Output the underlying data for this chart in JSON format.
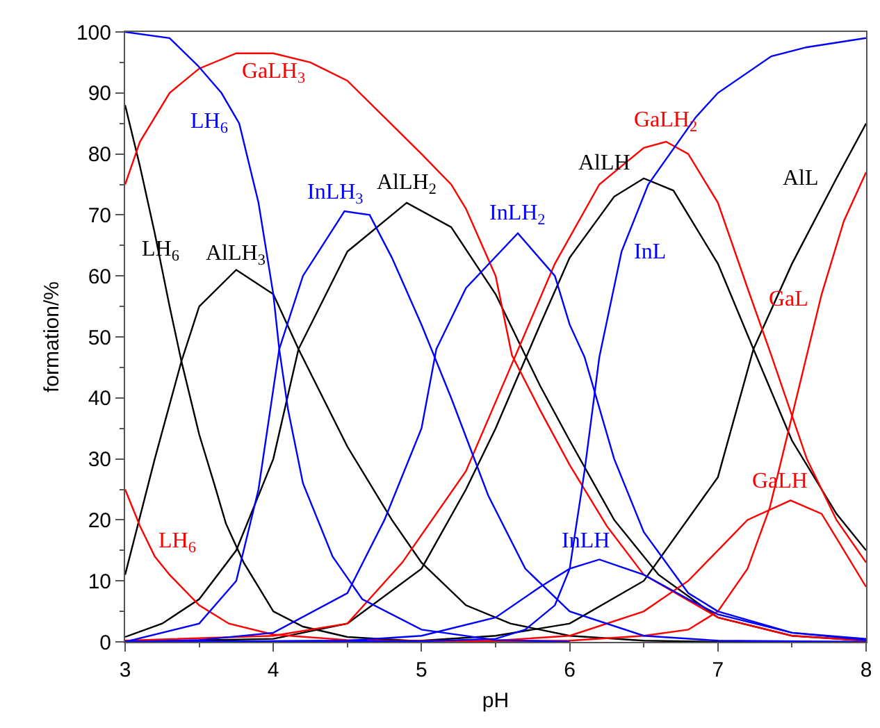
{
  "chart_data": {
    "type": "line",
    "xlabel": "pH",
    "ylabel": "formation/%",
    "xlim": [
      3,
      8
    ],
    "ylim": [
      0,
      100
    ],
    "xticks": [
      3,
      4,
      5,
      6,
      7,
      8
    ],
    "yticks": [
      0,
      10,
      20,
      30,
      40,
      50,
      60,
      70,
      80,
      90,
      100
    ],
    "marker": "none",
    "line_style": "solid",
    "series": [
      {
        "color": "#000000",
        "x": [
          3.0,
          3.1,
          3.2,
          3.3,
          3.38,
          3.5,
          3.6,
          3.68,
          3.8,
          3.9,
          4.0,
          4.2,
          4.5,
          5.0,
          5.5
        ],
        "values": [
          88,
          78,
          67,
          55,
          46,
          34,
          26,
          19.4,
          13,
          9,
          5,
          2.5,
          0.8,
          0.1,
          0
        ]
      },
      {
        "color": "#000000",
        "x": [
          3.0,
          3.2,
          3.38,
          3.5,
          3.75,
          4.0,
          4.17,
          4.5,
          4.8,
          5.0,
          5.3,
          5.6,
          6.0,
          6.5,
          7.0,
          8.0
        ],
        "values": [
          11,
          30,
          46,
          55,
          61,
          57,
          48,
          32,
          20,
          13,
          6,
          3,
          1,
          0.2,
          0,
          0
        ]
      },
      {
        "color": "#000000",
        "x": [
          3.0,
          3.25,
          3.5,
          3.75,
          4.0,
          4.17,
          4.5,
          4.9,
          5.2,
          5.5,
          5.8,
          6.0,
          6.3,
          6.6,
          7.0,
          7.5,
          8.0
        ],
        "values": [
          0.8,
          3,
          7,
          15,
          30,
          48,
          64,
          72,
          68,
          57,
          42,
          33,
          20,
          11,
          4,
          1,
          0.2
        ]
      },
      {
        "color": "#000000",
        "x": [
          3.0,
          4.0,
          4.5,
          5.0,
          5.3,
          5.5,
          5.8,
          6.0,
          6.3,
          6.5,
          6.7,
          7.0,
          7.24,
          7.5,
          7.8,
          8.0
        ],
        "values": [
          0,
          0.5,
          3,
          12,
          25,
          35,
          52,
          63,
          73,
          76,
          74,
          62,
          48,
          33,
          21,
          15
        ]
      },
      {
        "color": "#000000",
        "x": [
          3.0,
          5.0,
          5.5,
          6.0,
          6.5,
          7.0,
          7.24,
          7.5,
          7.8,
          8.0
        ],
        "values": [
          0,
          0.2,
          1,
          3,
          10,
          27,
          48,
          62,
          76,
          85
        ]
      },
      {
        "color": "#ff0000",
        "x": [
          3.0,
          3.1,
          3.2,
          3.3,
          3.5,
          3.7,
          4.0,
          4.5,
          5.0,
          6.0
        ],
        "values": [
          25,
          19,
          14,
          11,
          6,
          3,
          1.2,
          0.3,
          0,
          0
        ]
      },
      {
        "color": "#ff0000",
        "x": [
          3.0,
          3.1,
          3.3,
          3.5,
          3.75,
          4.0,
          4.25,
          4.5,
          4.75,
          5.0,
          5.2,
          5.3,
          5.5,
          5.61,
          5.8,
          6.0,
          6.25,
          6.5,
          7.0,
          7.5,
          8.0
        ],
        "values": [
          75,
          82,
          90,
          94,
          96.5,
          96.5,
          95,
          92,
          86,
          80,
          75,
          71,
          60,
          47,
          38,
          29,
          19,
          11,
          4,
          1,
          0.2
        ]
      },
      {
        "color": "#ff0000",
        "x": [
          3.0,
          4.0,
          4.5,
          4.87,
          5.3,
          5.6,
          5.9,
          6.2,
          6.5,
          6.65,
          6.8,
          7.0,
          7.2,
          7.36,
          7.6,
          7.8,
          8.0
        ],
        "values": [
          0.2,
          1,
          3,
          13,
          28,
          45,
          62,
          75,
          81,
          82,
          80,
          72,
          58,
          47,
          30,
          20,
          13
        ]
      },
      {
        "color": "#ff0000",
        "x": [
          3.0,
          5.5,
          6.0,
          6.5,
          6.8,
          7.0,
          7.2,
          7.49,
          7.7,
          7.8,
          8.0
        ],
        "values": [
          0,
          0.2,
          1,
          5,
          10,
          15,
          20,
          23.2,
          21,
          17,
          9
        ]
      },
      {
        "color": "#ff0000",
        "x": [
          3.0,
          6.0,
          6.5,
          6.8,
          7.0,
          7.2,
          7.35,
          7.5,
          7.7,
          7.85,
          8.0
        ],
        "values": [
          0,
          0.2,
          1,
          2,
          5,
          12,
          22,
          37,
          57,
          69,
          77
        ]
      },
      {
        "color": "#0000ff",
        "x": [
          3.0,
          3.3,
          3.49,
          3.65,
          3.77,
          3.9,
          4.0,
          4.04,
          4.1,
          4.2,
          4.4,
          4.6,
          5.0,
          5.5,
          6.0
        ],
        "values": [
          100,
          99,
          94.5,
          90,
          85,
          72,
          57,
          48,
          38,
          26,
          14,
          7,
          2,
          0.3,
          0
        ]
      },
      {
        "color": "#0000ff",
        "x": [
          3.0,
          3.5,
          3.75,
          3.9,
          4.04,
          4.2,
          4.48,
          4.65,
          4.8,
          5.0,
          5.2,
          5.45,
          5.7,
          6.0,
          6.5,
          7.0,
          8.0
        ],
        "values": [
          0,
          3,
          10,
          25,
          48,
          60,
          70.6,
          70,
          63,
          52,
          40,
          24,
          12,
          5,
          1,
          0.2,
          0
        ]
      },
      {
        "color": "#0000ff",
        "x": [
          3.0,
          3.5,
          4.0,
          4.5,
          4.75,
          5.0,
          5.1,
          5.3,
          5.65,
          5.9,
          6.0,
          6.1,
          6.3,
          6.5,
          6.8,
          7.0,
          7.5,
          8.0
        ],
        "values": [
          0,
          0.3,
          1.5,
          8,
          20,
          35,
          48,
          58,
          67,
          60,
          52,
          46.7,
          30,
          18,
          8,
          5,
          1.5,
          0.3
        ]
      },
      {
        "color": "#0000ff",
        "x": [
          3.0,
          4.5,
          5.0,
          5.5,
          5.8,
          6.0,
          6.2,
          6.5,
          6.8,
          7.0,
          7.5,
          8.0
        ],
        "values": [
          0,
          0.2,
          1,
          4,
          9,
          12,
          13.5,
          11,
          7,
          4.5,
          1.5,
          0.5
        ]
      },
      {
        "color": "#0000ff",
        "x": [
          3.0,
          5.0,
          5.5,
          5.7,
          5.9,
          6.0,
          6.1,
          6.2,
          6.35,
          6.53,
          6.85,
          7.0,
          7.36,
          7.6,
          8.0
        ],
        "values": [
          0,
          0.1,
          0.5,
          2,
          6,
          12,
          28,
          46.7,
          64,
          75,
          86,
          90,
          96,
          97.5,
          99
        ]
      }
    ],
    "annotations": [
      {
        "text": "GaLH$_{3}$",
        "x": 4.0,
        "y": 96.5
      },
      {
        "text": "LH$_{6}$",
        "x": 3.77,
        "y": 85
      },
      {
        "text": "InLH$_{3}$",
        "x": 4.48,
        "y": 70.6
      },
      {
        "text": "AlLH$_{2}$",
        "x": 4.9,
        "y": 72
      },
      {
        "text": "LH$_{6}$",
        "x": 3.2,
        "y": 67
      },
      {
        "text": "AlLH$_{3}$",
        "x": 3.75,
        "y": 61
      },
      {
        "text": "InLH$_{2}$",
        "x": 5.65,
        "y": 67
      },
      {
        "text": "AlLH",
        "x": 6.5,
        "y": 76
      },
      {
        "text": "GaLH$_{2}$",
        "x": 6.65,
        "y": 82
      },
      {
        "text": "InL",
        "x": 6.35,
        "y": 64
      },
      {
        "text": "AlL",
        "x": 7.8,
        "y": 76
      },
      {
        "text": "GaL",
        "x": 7.7,
        "y": 57
      },
      {
        "text": "LH$_{6}$",
        "x": 3.2,
        "y": 14
      },
      {
        "text": "InLH",
        "x": 6.2,
        "y": 13.5
      },
      {
        "text": "GaLH",
        "x": 7.49,
        "y": 23.2
      }
    ]
  }
}
